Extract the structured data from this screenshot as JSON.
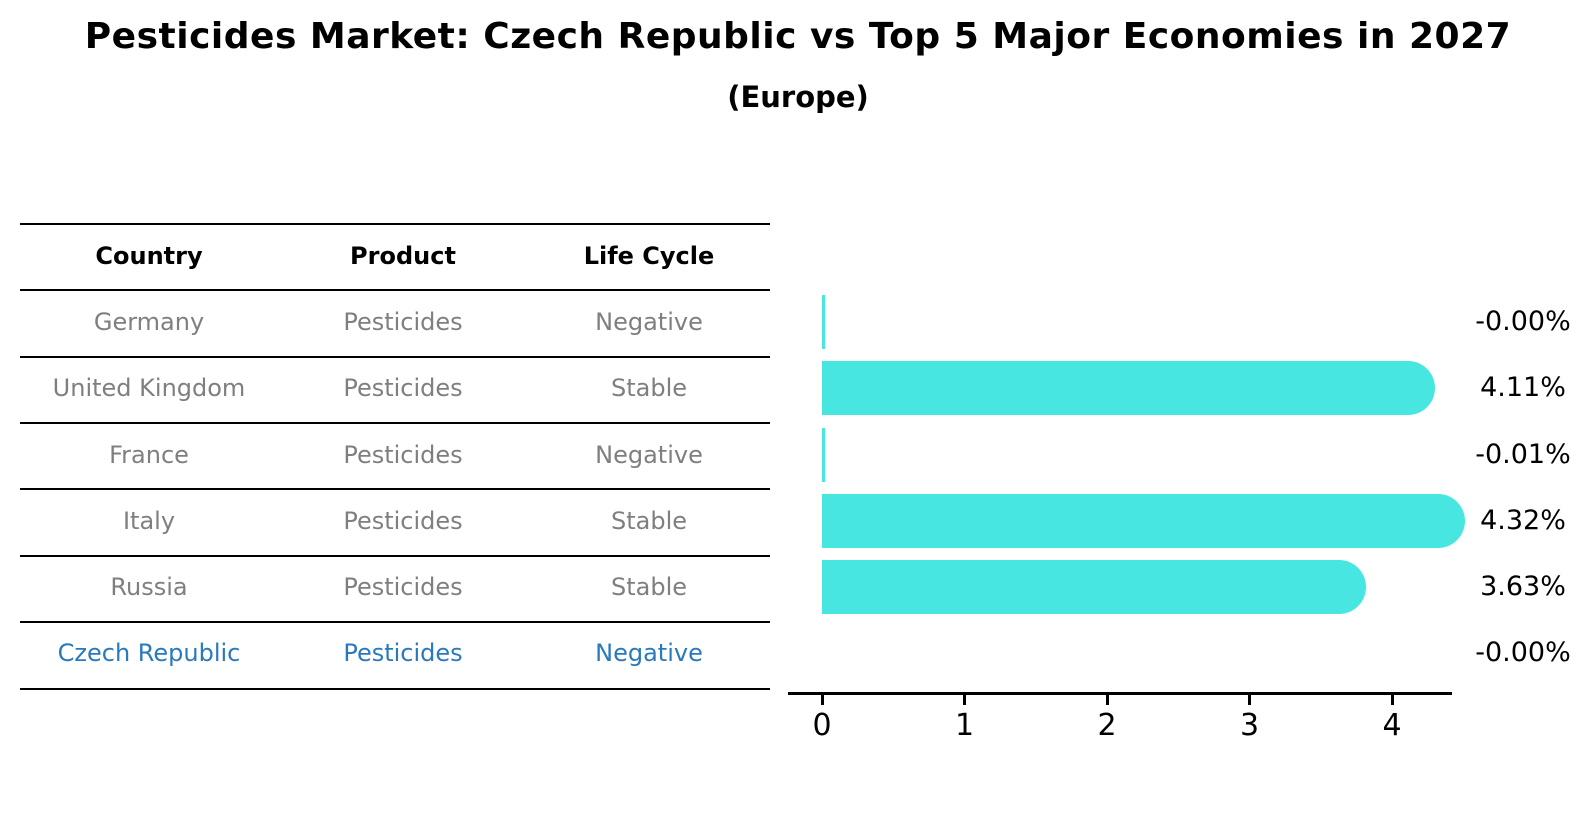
{
  "title": "Pesticides Market: Czech Republic vs Top 5 Major Economies in 2027",
  "subtitle": "(Europe)",
  "table": {
    "headers": [
      "Country",
      "Product",
      "Life Cycle"
    ],
    "rows": [
      {
        "country": "Germany",
        "product": "Pesticides",
        "life_cycle": "Negative",
        "highlight": false
      },
      {
        "country": "United Kingdom",
        "product": "Pesticides",
        "life_cycle": "Stable",
        "highlight": false
      },
      {
        "country": "France",
        "product": "Pesticides",
        "life_cycle": "Negative",
        "highlight": false
      },
      {
        "country": "Italy",
        "product": "Pesticides",
        "life_cycle": "Stable",
        "highlight": false
      },
      {
        "country": "Russia",
        "product": "Pesticides",
        "life_cycle": "Stable",
        "highlight": false
      },
      {
        "country": "Czech Republic",
        "product": "Pesticides",
        "life_cycle": "Negative",
        "highlight": true
      }
    ]
  },
  "chart_data": {
    "type": "bar",
    "orientation": "horizontal",
    "title": "Pesticides Market: Czech Republic vs Top 5 Major Economies in 2027 (Europe)",
    "categories": [
      "Germany",
      "United Kingdom",
      "France",
      "Italy",
      "Russia",
      "Czech Republic"
    ],
    "values": [
      -0.0,
      4.11,
      -0.01,
      4.32,
      3.63,
      -0.0
    ],
    "value_labels": [
      "-0.00%",
      "4.11%",
      "-0.01%",
      "4.32%",
      "3.63%",
      "-0.00%"
    ],
    "x_ticks": [
      "0",
      "1",
      "2",
      "3",
      "4"
    ],
    "xlim": [
      0,
      4.65
    ],
    "grid": false,
    "legend": "none",
    "bar_color": "#48E6E0",
    "highlight_index": 5,
    "highlight_bar_style": "dashed-outline",
    "highlight_color": "#2979BD",
    "value_label_position": "outside-right"
  },
  "colors": {
    "muted_text": "#7f7f7f",
    "header_text": "#000000",
    "axis": "#000000",
    "background": "#ffffff"
  }
}
